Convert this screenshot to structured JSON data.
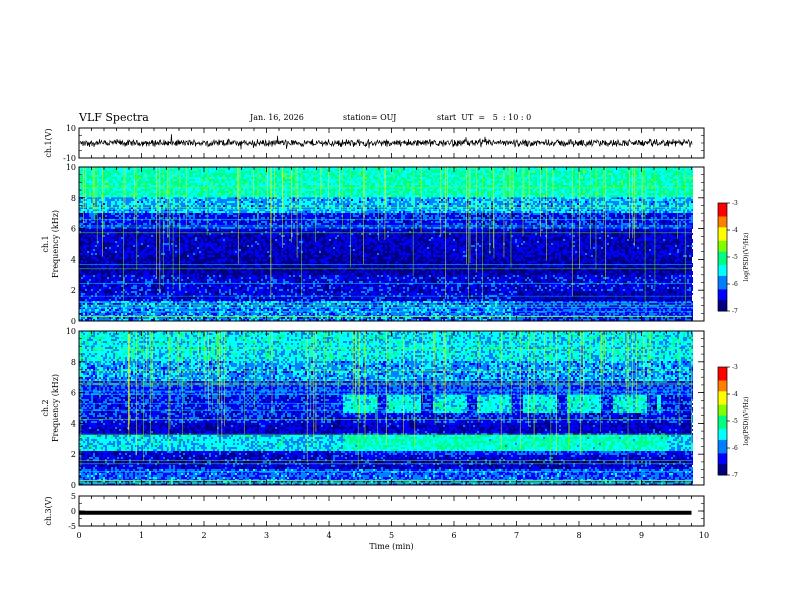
{
  "header": {
    "title": "VLF Spectra",
    "date": "Jan. 16, 2026",
    "station": "station= OUJ",
    "start": "start  UT  =   5  : 10 : 0"
  },
  "chart_data": [
    {
      "type": "line",
      "panel": "ch1-waveform",
      "ylabel": "ch.1(V)",
      "ylim": [
        -10,
        10
      ],
      "yticks": [
        "10",
        "-10"
      ],
      "x": [
        0,
        1,
        2,
        3,
        4,
        5,
        6,
        7,
        8,
        9,
        9.8
      ],
      "y": [
        0,
        0,
        0,
        0,
        0,
        0,
        0,
        0,
        0,
        0,
        0
      ]
    },
    {
      "type": "heatmap",
      "panel": "ch1-spectrogram",
      "ylabel": "ch.1\nFrequency (kHz)",
      "ylim": [
        0,
        10
      ],
      "yticks": [
        "0",
        "2",
        "4",
        "6",
        "8",
        "10"
      ],
      "xlim": [
        0,
        10
      ],
      "colorbar": {
        "label": "log(PSD)(V²/Hz)",
        "range": [
          -7,
          -3
        ],
        "ticks": [
          "-3",
          "-4",
          "-5",
          "-6",
          "-7"
        ]
      }
    },
    {
      "type": "heatmap",
      "panel": "ch2-spectrogram",
      "ylabel": "ch.2\nFrequency (kHz)",
      "ylim": [
        0,
        10
      ],
      "yticks": [
        "0",
        "2",
        "4",
        "6",
        "8",
        "10"
      ],
      "xlim": [
        0,
        10
      ],
      "colorbar": {
        "label": "log(PSD)(V²/Hz)",
        "range": [
          -7,
          -3
        ],
        "ticks": [
          "-3",
          "-4",
          "-5",
          "-6",
          "-7"
        ]
      }
    },
    {
      "type": "line",
      "panel": "ch3-waveform",
      "ylabel": "ch.3(V)",
      "ylim": [
        -5,
        5
      ],
      "yticks": [
        "5",
        "0",
        "-5"
      ],
      "x": [
        0,
        9.8
      ],
      "y": [
        -0.6,
        -0.6
      ]
    }
  ],
  "xaxis": {
    "label": "Time (min)",
    "range": [
      0,
      10
    ],
    "ticks": [
      "0",
      "1",
      "2",
      "3",
      "4",
      "5",
      "6",
      "7",
      "8",
      "9",
      "10"
    ]
  },
  "colormap": [
    "#000080",
    "#0000ff",
    "#0080ff",
    "#00ffff",
    "#00ff80",
    "#80ff00",
    "#ffff00",
    "#ff8000",
    "#ff0000",
    "#ffffff"
  ]
}
